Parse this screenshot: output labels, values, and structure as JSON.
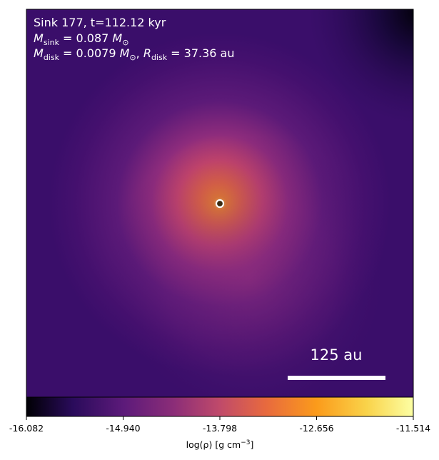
{
  "annotation": {
    "sink_line": "Sink 177, t=112.12 kyr",
    "msink_var": "M",
    "msink_sub": "sink",
    "msink_value": " = 0.087 ",
    "msink_unit": "M",
    "msink_unit_sub": "⊙",
    "mdisk_var": "M",
    "mdisk_sub": "disk",
    "mdisk_value": " = 0.0079 ",
    "mdisk_unit": "M",
    "mdisk_unit_sub": "⊙",
    "mdisk_sep": ", ",
    "rdisk_var": "R",
    "rdisk_sub": "disk",
    "rdisk_value": " = 37.36 au"
  },
  "scale_bar": {
    "label": "125 au"
  },
  "colorbar": {
    "ticks": [
      "-16.082",
      "-14.940",
      "-13.798",
      "-12.656",
      "-11.514"
    ],
    "label_prefix": "log(ρ) [g cm",
    "label_exp": "−3",
    "label_suffix": "]",
    "colormap": "inferno-like (black → purple → orange → yellow)",
    "colors": [
      "#000004",
      "#2a0b5b",
      "#5c1a7a",
      "#8b2d78",
      "#c04a6a",
      "#e86a3e",
      "#fb9b1b",
      "#f9d34a",
      "#fcffa4"
    ]
  },
  "image": {
    "background_color": "#3a0e6c",
    "sink_marker": "white-ring-marker"
  }
}
